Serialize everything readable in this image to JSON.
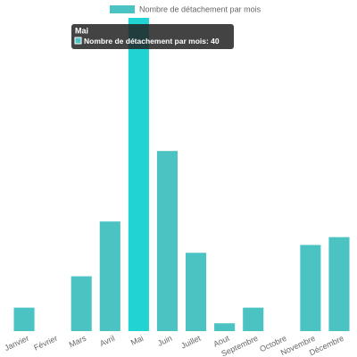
{
  "chart_data": {
    "type": "bar",
    "title": "",
    "xlabel": "",
    "ylabel": "",
    "ylim": [
      0,
      40
    ],
    "grid": false,
    "legend_position": "top",
    "categories": [
      "Janvier",
      "Février",
      "Mars",
      "Avril",
      "Mai",
      "Juin",
      "Juillet",
      "Aout",
      "Septembre",
      "Octobre",
      "Novembre",
      "Décembre"
    ],
    "series": [
      {
        "name": "Nombre de détachement par mois",
        "values": [
          3,
          0,
          7,
          14,
          40,
          23,
          10,
          1,
          3,
          0,
          11,
          12
        ],
        "color": "#4cc3c3",
        "highlight_color": "#21d3d3"
      }
    ],
    "tooltip": {
      "category_index": 4,
      "title": "Mai",
      "label": "Nombre de détachement par mois: 40",
      "background": "#222222"
    }
  }
}
